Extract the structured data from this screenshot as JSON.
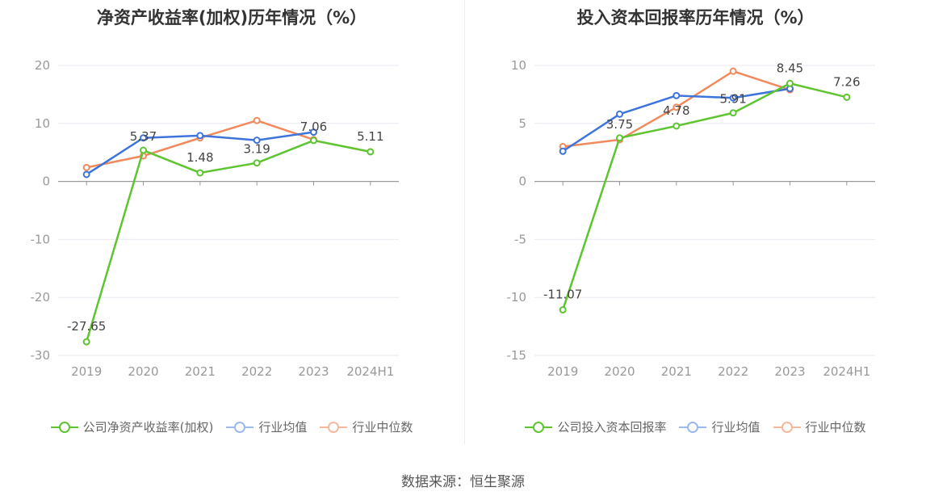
{
  "source": "数据来源：恒生聚源",
  "colors": {
    "company": "#5ec42f",
    "average": "#3d74db",
    "median": "#f08a5d",
    "axis": "#999999",
    "grid": "#e8e8f0"
  },
  "chart_data": [
    {
      "type": "line",
      "title": "净资产收益率(加权)历年情况（%）",
      "categories": [
        "2019",
        "2020",
        "2021",
        "2022",
        "2023",
        "2024H1"
      ],
      "ylim": [
        -30,
        20
      ],
      "yticks": [
        20,
        10,
        0,
        -10,
        -20,
        -30
      ],
      "ytick_labels": [
        "20",
        "10",
        "0",
        "-10",
        "-20",
        "-30"
      ],
      "grid": true,
      "legend_position": "bottom",
      "series": [
        {
          "name": "公司净资产收益率(加权)",
          "color_key": "company",
          "values": [
            -27.65,
            5.37,
            1.48,
            3.19,
            7.06,
            5.11
          ],
          "labels": [
            "-27.65",
            "5.37",
            "1.48",
            "3.19",
            "7.06",
            "5.11"
          ]
        },
        {
          "name": "行业均值",
          "color_key": "average",
          "values": [
            1.2,
            7.5,
            7.9,
            7.1,
            8.5,
            null
          ]
        },
        {
          "name": "行业中位数",
          "color_key": "median",
          "values": [
            2.4,
            4.4,
            7.5,
            10.5,
            7.2,
            null
          ]
        }
      ]
    },
    {
      "type": "line",
      "title": "投入资本回报率历年情况（%）",
      "categories": [
        "2019",
        "2020",
        "2021",
        "2022",
        "2023",
        "2024H1"
      ],
      "ylim": [
        -15,
        10
      ],
      "yticks": [
        10,
        5,
        0,
        -5,
        -10,
        -15
      ],
      "ytick_labels": [
        "10",
        "5",
        "0",
        "-5",
        "-10",
        "-15"
      ],
      "grid": true,
      "legend_position": "bottom",
      "series": [
        {
          "name": "公司投入资本回报率",
          "color_key": "company",
          "values": [
            -11.07,
            3.75,
            4.78,
            5.91,
            8.45,
            7.26
          ],
          "labels": [
            "-11.07",
            "3.75",
            "4.78",
            "5.91",
            "8.45",
            "7.26"
          ]
        },
        {
          "name": "行业均值",
          "color_key": "average",
          "values": [
            2.6,
            5.8,
            7.4,
            7.2,
            8.0,
            null
          ]
        },
        {
          "name": "行业中位数",
          "color_key": "median",
          "values": [
            3.0,
            3.6,
            6.4,
            9.5,
            7.9,
            null
          ]
        }
      ]
    }
  ]
}
